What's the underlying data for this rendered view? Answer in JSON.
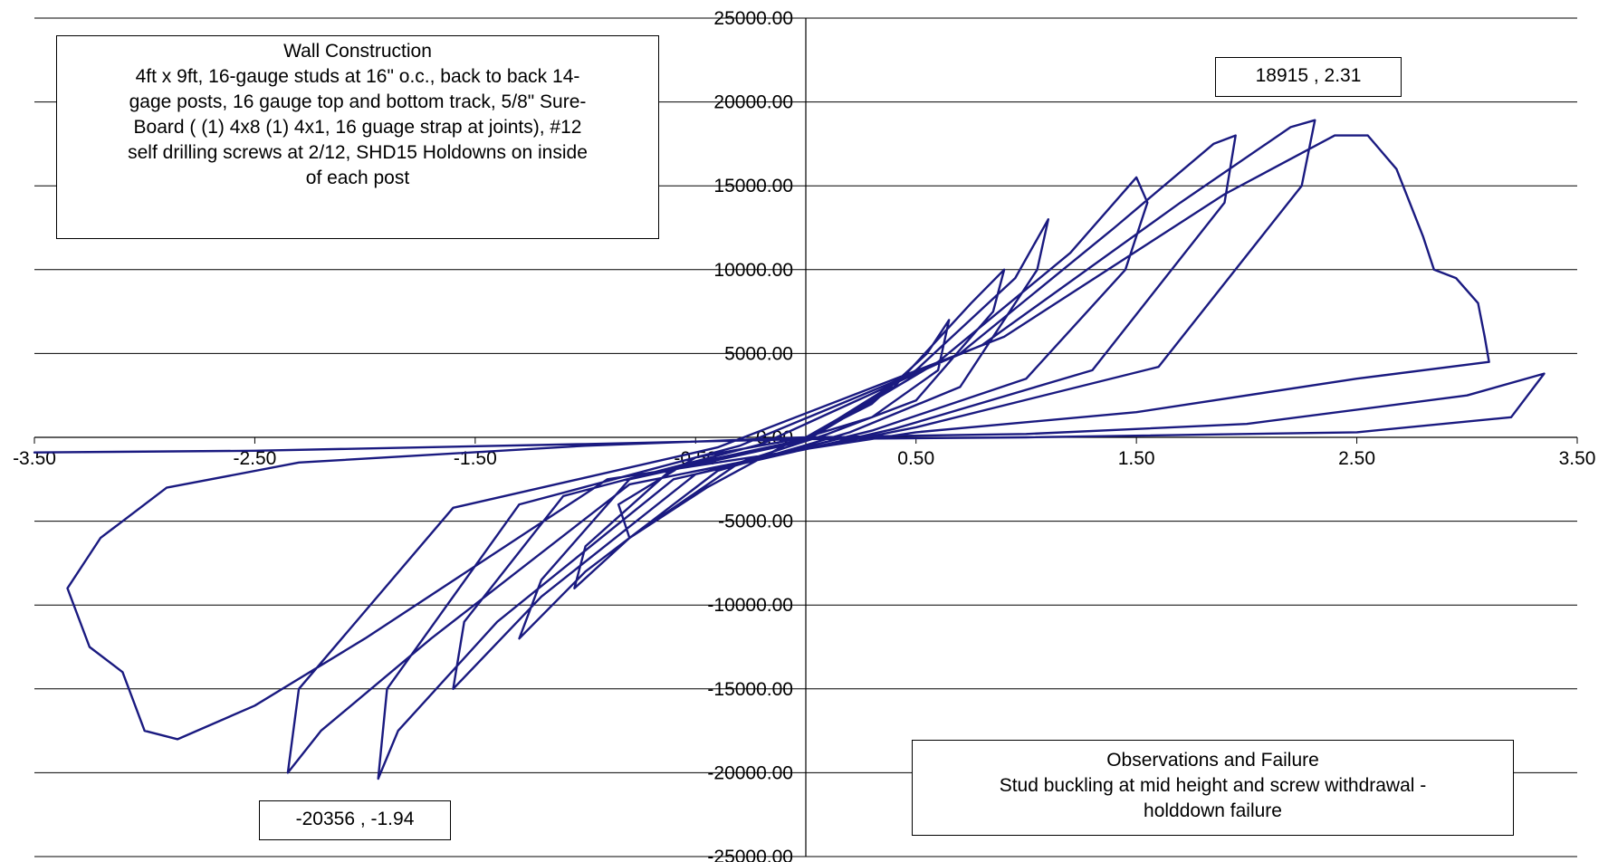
{
  "chart_data": {
    "type": "line",
    "title": "",
    "xlabel": "",
    "ylabel": "",
    "xlim": [
      -3.5,
      3.5
    ],
    "ylim": [
      -25000,
      25000
    ],
    "x_ticks": [
      "-3.50",
      "-2.50",
      "-1.50",
      "-0.50",
      "0.50",
      "1.50",
      "2.50",
      "3.50"
    ],
    "y_ticks": [
      "25000.00",
      "20000.00",
      "15000.00",
      "10000.00",
      "5000.00",
      "0.00",
      "-5000.00",
      "-10000.00",
      "-15000.00",
      "-20000.00",
      "-25000.00"
    ],
    "grid": "horizontal",
    "series": [
      {
        "name": "",
        "color": "#1a1a80",
        "points": [
          [
            0,
            0
          ],
          [
            0.3,
            2000
          ],
          [
            0.55,
            5000
          ],
          [
            0.65,
            7000
          ],
          [
            0.6,
            4000
          ],
          [
            0.3,
            1200
          ],
          [
            0,
            0
          ],
          [
            -0.1,
            -500
          ],
          [
            -0.45,
            -3000
          ],
          [
            -0.8,
            -6000
          ],
          [
            -0.85,
            -4000
          ],
          [
            -0.5,
            -1200
          ],
          [
            0,
            0
          ],
          [
            0.4,
            3000
          ],
          [
            0.75,
            8000
          ],
          [
            0.9,
            10000
          ],
          [
            0.85,
            7500
          ],
          [
            0.5,
            2200
          ],
          [
            0.1,
            200
          ],
          [
            -0.3,
            -1500
          ],
          [
            -0.8,
            -6000
          ],
          [
            -1.05,
            -9000
          ],
          [
            -1.0,
            -6500
          ],
          [
            -0.6,
            -1800
          ],
          [
            0,
            -100
          ],
          [
            0.5,
            4000
          ],
          [
            0.95,
            9500
          ],
          [
            1.1,
            13000
          ],
          [
            1.05,
            10000
          ],
          [
            0.7,
            3000
          ],
          [
            0.2,
            300
          ],
          [
            -0.4,
            -2000
          ],
          [
            -1.0,
            -8000
          ],
          [
            -1.3,
            -12000
          ],
          [
            -1.2,
            -8500
          ],
          [
            -0.8,
            -2500
          ],
          [
            0,
            -200
          ],
          [
            0.6,
            4500
          ],
          [
            1.2,
            11000
          ],
          [
            1.5,
            15500
          ],
          [
            1.55,
            14000
          ],
          [
            1.45,
            10000
          ],
          [
            1.0,
            3500
          ],
          [
            0.3,
            400
          ],
          [
            -0.5,
            -2200
          ],
          [
            -1.2,
            -9500
          ],
          [
            -1.6,
            -15000
          ],
          [
            -1.55,
            -11000
          ],
          [
            -1.1,
            -3500
          ],
          [
            -0.2,
            -400
          ],
          [
            0.7,
            5000
          ],
          [
            1.4,
            12500
          ],
          [
            1.85,
            17500
          ],
          [
            1.95,
            18000
          ],
          [
            1.9,
            14000
          ],
          [
            1.3,
            4000
          ],
          [
            0.4,
            500
          ],
          [
            -0.6,
            -2500
          ],
          [
            -1.4,
            -11000
          ],
          [
            -1.85,
            -17500
          ],
          [
            -1.94,
            -20356
          ],
          [
            -1.9,
            -15000
          ],
          [
            -1.3,
            -4000
          ],
          [
            -0.3,
            -500
          ],
          [
            0.8,
            5500
          ],
          [
            1.7,
            14000
          ],
          [
            2.2,
            18500
          ],
          [
            2.31,
            18915
          ],
          [
            2.25,
            15000
          ],
          [
            1.6,
            4200
          ],
          [
            0.5,
            600
          ],
          [
            -0.8,
            -2800
          ],
          [
            -1.7,
            -12000
          ],
          [
            -2.2,
            -17500
          ],
          [
            -2.35,
            -20000
          ],
          [
            -2.3,
            -15000
          ],
          [
            -1.6,
            -4200
          ],
          [
            -0.4,
            -600
          ],
          [
            0.9,
            6000
          ],
          [
            1.9,
            14500
          ],
          [
            2.4,
            18000
          ],
          [
            2.55,
            18000
          ],
          [
            2.68,
            16000
          ],
          [
            2.8,
            12000
          ],
          [
            2.85,
            10000
          ],
          [
            2.95,
            9500
          ],
          [
            3.05,
            8000
          ],
          [
            3.08,
            6000
          ],
          [
            3.1,
            4500
          ],
          [
            2.5,
            3500
          ],
          [
            1.5,
            1500
          ],
          [
            0.5,
            300
          ],
          [
            -0.9,
            -2500
          ],
          [
            -2.0,
            -12000
          ],
          [
            -2.5,
            -16000
          ],
          [
            -2.85,
            -18000
          ],
          [
            -3.0,
            -17500
          ],
          [
            -3.1,
            -14000
          ],
          [
            -3.25,
            -12500
          ],
          [
            -3.35,
            -9000
          ],
          [
            -3.2,
            -6000
          ],
          [
            -2.9,
            -3000
          ],
          [
            -2.3,
            -1500
          ],
          [
            -1.0,
            -500
          ],
          [
            0,
            0
          ],
          [
            1.0,
            200
          ],
          [
            2.0,
            800
          ],
          [
            3.0,
            2500
          ],
          [
            3.35,
            3800
          ],
          [
            3.2,
            1200
          ],
          [
            2.5,
            300
          ],
          [
            1.0,
            0
          ],
          [
            0,
            -100
          ],
          [
            -1.0,
            -400
          ],
          [
            -2.5,
            -800
          ],
          [
            -3.5,
            -900
          ]
        ]
      }
    ],
    "annotations": [
      {
        "name": "wall-construction",
        "text": "Wall Construction\n4ft x 9ft, 16-gauge studs at 16\" o.c., back to back 14-\ngage posts, 16 gauge top and bottom track, 5/8\" Sure-\nBoard ( (1) 4x8 (1) 4x1, 16 guage strap at joints), #12\nself drilling screws at 2/12, SHD15 Holdowns on inside\nof each post"
      },
      {
        "name": "max-point",
        "text": "18915 , 2.31"
      },
      {
        "name": "min-point",
        "text": "-20356 , -1.94"
      },
      {
        "name": "observations",
        "text": "Observations and Failure\nStud buckling at mid height and screw withdrawal -\nholddown failure"
      }
    ]
  }
}
